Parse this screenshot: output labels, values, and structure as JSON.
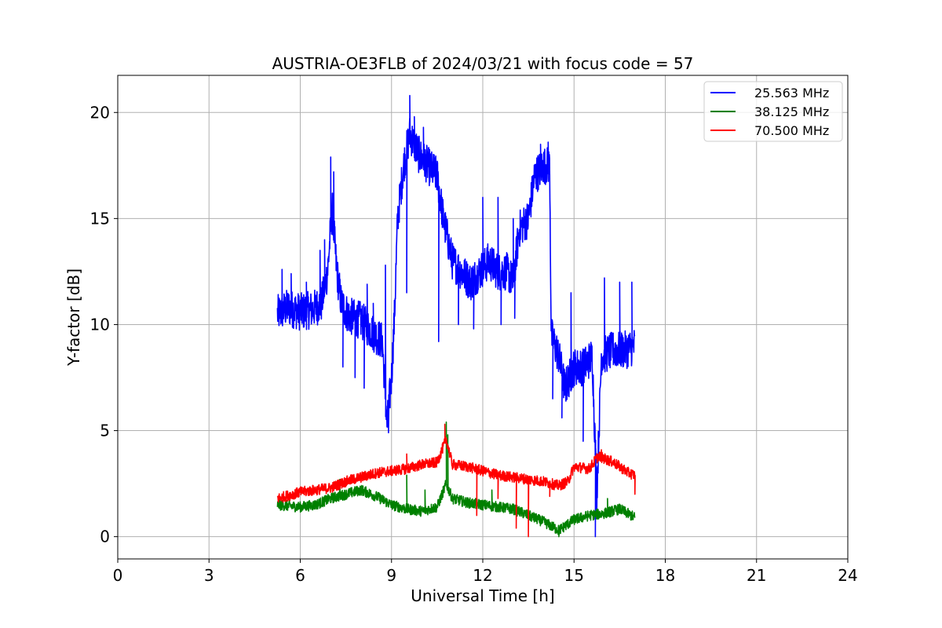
{
  "chart_data": {
    "type": "line",
    "title": "AUSTRIA-OE3FLB of 2024/03/21 with focus code = 57",
    "xlabel": "Universal Time [h]",
    "ylabel": "Y-factor [dB]",
    "xlim": [
      0,
      24
    ],
    "ylim": [
      -1.05,
      21.75
    ],
    "xticks": [
      0,
      3,
      6,
      9,
      12,
      15,
      18,
      21,
      24
    ],
    "yticks": [
      0,
      5,
      10,
      15,
      20
    ],
    "xtick_labels": [
      "0",
      "3",
      "6",
      "9",
      "12",
      "15",
      "18",
      "21",
      "24"
    ],
    "ytick_labels": [
      "0",
      "5",
      "10",
      "15",
      "20"
    ],
    "grid": true,
    "legend_position": "top-right",
    "series": [
      {
        "name": "25.563 MHz",
        "color": "#0000ff",
        "noise": 0.9,
        "points": [
          [
            5.25,
            10.5
          ],
          [
            5.6,
            10.8
          ],
          [
            6.0,
            10.6
          ],
          [
            6.4,
            10.7
          ],
          [
            6.7,
            11.0
          ],
          [
            6.9,
            12.5
          ],
          [
            7.05,
            15.5
          ],
          [
            7.2,
            12.5
          ],
          [
            7.35,
            11.0
          ],
          [
            7.6,
            10.4
          ],
          [
            8.0,
            10.2
          ],
          [
            8.4,
            9.6
          ],
          [
            8.7,
            9.2
          ],
          [
            8.85,
            5.2
          ],
          [
            9.0,
            7.5
          ],
          [
            9.1,
            10.5
          ],
          [
            9.2,
            15.0
          ],
          [
            9.4,
            17.5
          ],
          [
            9.6,
            19.0
          ],
          [
            9.9,
            18.0
          ],
          [
            10.2,
            17.5
          ],
          [
            10.5,
            17.0
          ],
          [
            10.7,
            15.0
          ],
          [
            11.0,
            13.0
          ],
          [
            11.3,
            12.5
          ],
          [
            11.6,
            12.0
          ],
          [
            11.9,
            12.5
          ],
          [
            12.2,
            13.0
          ],
          [
            12.5,
            12.5
          ],
          [
            12.8,
            12.5
          ],
          [
            13.0,
            12.0
          ],
          [
            13.2,
            14.5
          ],
          [
            13.5,
            15.0
          ],
          [
            13.7,
            17.0
          ],
          [
            14.0,
            17.5
          ],
          [
            14.2,
            17.5
          ],
          [
            14.25,
            9.5
          ],
          [
            14.5,
            8.5
          ],
          [
            14.7,
            7.0
          ],
          [
            15.0,
            8.0
          ],
          [
            15.3,
            8.0
          ],
          [
            15.6,
            8.5
          ],
          [
            15.75,
            2.0
          ],
          [
            15.9,
            8.5
          ],
          [
            16.3,
            8.8
          ],
          [
            16.7,
            8.8
          ],
          [
            17.0,
            9.0
          ]
        ],
        "spikes": [
          [
            5.4,
            12.6
          ],
          [
            5.7,
            12.4
          ],
          [
            6.2,
            12.0
          ],
          [
            6.65,
            13.5
          ],
          [
            6.8,
            14.0
          ],
          [
            7.0,
            17.9
          ],
          [
            7.1,
            17.2
          ],
          [
            7.4,
            8.0
          ],
          [
            7.8,
            7.5
          ],
          [
            8.1,
            7.0
          ],
          [
            8.2,
            11.9
          ],
          [
            8.4,
            11.0
          ],
          [
            8.8,
            12.8
          ],
          [
            8.9,
            4.9
          ],
          [
            9.5,
            11.5
          ],
          [
            9.6,
            20.8
          ],
          [
            9.75,
            19.8
          ],
          [
            10.05,
            19.3
          ],
          [
            10.4,
            18.0
          ],
          [
            10.55,
            9.2
          ],
          [
            11.2,
            10.0
          ],
          [
            11.7,
            9.8
          ],
          [
            12.0,
            16.0
          ],
          [
            12.5,
            16.0
          ],
          [
            12.6,
            10.0
          ],
          [
            13.0,
            15.0
          ],
          [
            13.05,
            10.3
          ],
          [
            13.9,
            18.5
          ],
          [
            14.15,
            18.6
          ],
          [
            14.3,
            6.5
          ],
          [
            14.6,
            5.6
          ],
          [
            14.9,
            11.5
          ],
          [
            15.3,
            4.5
          ],
          [
            15.7,
            0.0
          ],
          [
            16.0,
            12.2
          ],
          [
            16.5,
            12.0
          ],
          [
            16.9,
            12.0
          ]
        ]
      },
      {
        "name": "38.125 MHz",
        "color": "#008000",
        "noise": 0.25,
        "points": [
          [
            5.25,
            1.5
          ],
          [
            6.0,
            1.4
          ],
          [
            6.5,
            1.5
          ],
          [
            7.0,
            1.8
          ],
          [
            7.5,
            2.0
          ],
          [
            8.0,
            2.2
          ],
          [
            8.5,
            1.9
          ],
          [
            9.0,
            1.5
          ],
          [
            9.5,
            1.3
          ],
          [
            10.0,
            1.2
          ],
          [
            10.5,
            1.4
          ],
          [
            10.8,
            2.5
          ],
          [
            11.0,
            1.8
          ],
          [
            11.5,
            1.6
          ],
          [
            12.0,
            1.5
          ],
          [
            12.5,
            1.4
          ],
          [
            13.0,
            1.3
          ],
          [
            13.5,
            1.0
          ],
          [
            14.0,
            0.7
          ],
          [
            14.5,
            0.3
          ],
          [
            15.0,
            0.8
          ],
          [
            15.5,
            1.0
          ],
          [
            16.0,
            1.1
          ],
          [
            16.5,
            1.3
          ],
          [
            17.0,
            0.9
          ]
        ],
        "spikes": [
          [
            7.3,
            2.7
          ],
          [
            9.5,
            2.9
          ],
          [
            10.1,
            2.2
          ],
          [
            10.8,
            5.4
          ],
          [
            10.85,
            4.8
          ],
          [
            12.3,
            2.2
          ],
          [
            14.5,
            0.0
          ],
          [
            16.1,
            1.8
          ]
        ]
      },
      {
        "name": "70.500 MHz",
        "color": "#ff0000",
        "noise": 0.25,
        "points": [
          [
            5.25,
            1.8
          ],
          [
            6.0,
            2.1
          ],
          [
            6.5,
            2.2
          ],
          [
            7.0,
            2.3
          ],
          [
            7.5,
            2.6
          ],
          [
            8.0,
            2.8
          ],
          [
            8.5,
            3.0
          ],
          [
            9.0,
            3.1
          ],
          [
            9.5,
            3.2
          ],
          [
            10.0,
            3.4
          ],
          [
            10.5,
            3.5
          ],
          [
            10.8,
            4.6
          ],
          [
            11.0,
            3.4
          ],
          [
            11.5,
            3.3
          ],
          [
            12.0,
            3.1
          ],
          [
            12.5,
            2.9
          ],
          [
            13.0,
            2.8
          ],
          [
            13.5,
            2.7
          ],
          [
            14.0,
            2.6
          ],
          [
            14.5,
            2.4
          ],
          [
            14.8,
            2.6
          ],
          [
            15.0,
            3.3
          ],
          [
            15.5,
            3.2
          ],
          [
            15.8,
            3.8
          ],
          [
            16.3,
            3.5
          ],
          [
            16.8,
            3.0
          ],
          [
            17.0,
            2.9
          ]
        ],
        "spikes": [
          [
            9.5,
            3.9
          ],
          [
            10.75,
            5.3
          ],
          [
            11.8,
            1.0
          ],
          [
            12.5,
            1.8
          ],
          [
            13.1,
            0.4
          ],
          [
            13.5,
            0.0
          ],
          [
            14.2,
            1.9
          ],
          [
            15.9,
            4.1
          ],
          [
            17.0,
            2.0
          ]
        ]
      }
    ]
  }
}
